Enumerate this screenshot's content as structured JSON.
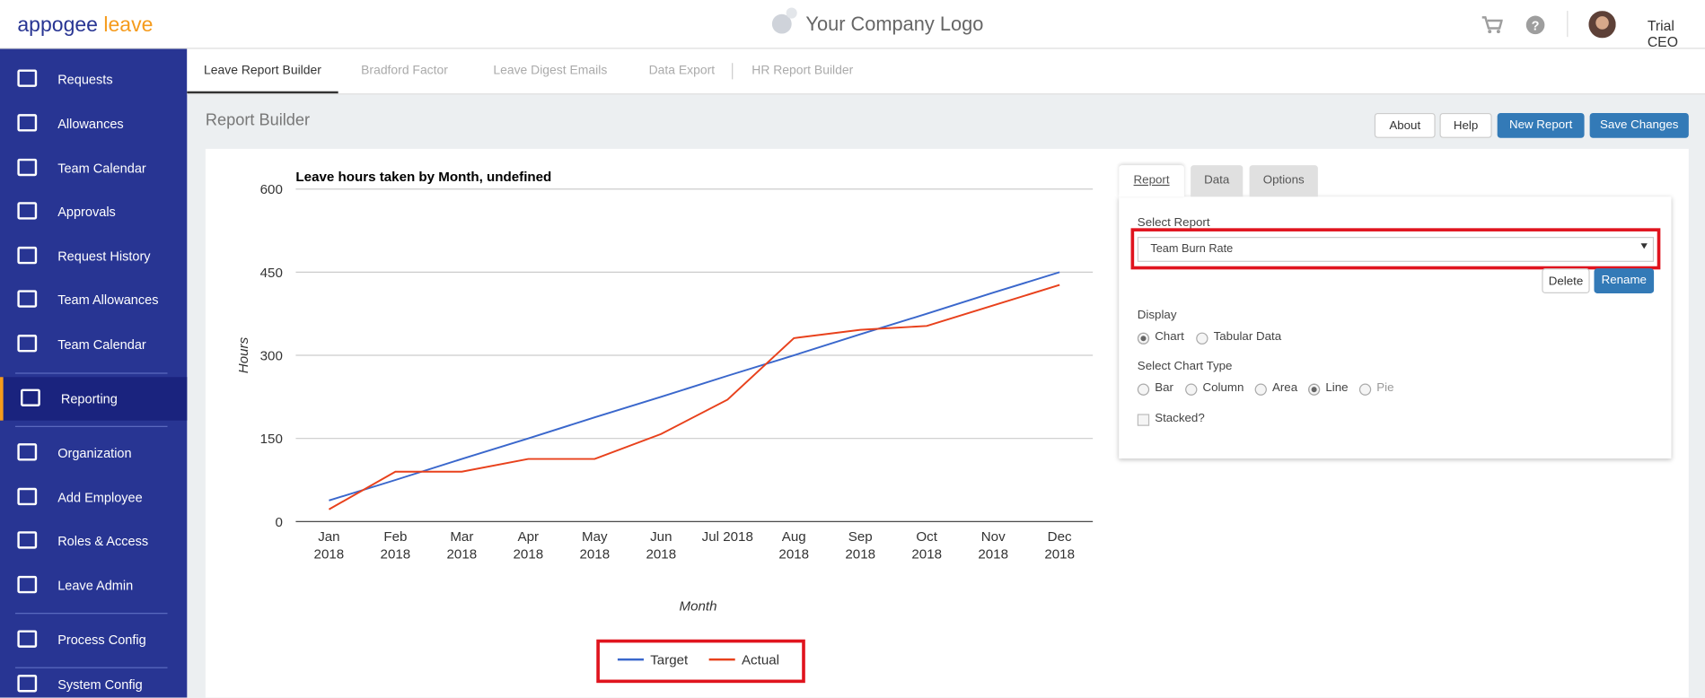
{
  "header": {
    "brand": "appogee",
    "brand_product": "leave",
    "logo_text": "Your Company Logo",
    "user": "Trial CEO"
  },
  "nav": [
    "Requests",
    "Allowances",
    "Team Calendar",
    "Approvals",
    "Request History",
    "Team Allowances",
    "Team Calendar",
    "Reporting",
    "Organization",
    "Add Employee",
    "Roles & Access",
    "Leave Admin",
    "Process Config",
    "System Config"
  ],
  "tabs": [
    "Leave Report Builder",
    "Bradford Factor",
    "Leave Digest Emails",
    "Data Export",
    "HR Report Builder"
  ],
  "page_title": "Report Builder",
  "buttons": [
    "About",
    "Help",
    "New Report",
    "Save Changes"
  ],
  "chart_data": {
    "type": "line",
    "title": "Leave hours taken by Month, undefined",
    "y_label": "Hours",
    "x_label": "Month",
    "categories": [
      "Jan\n2018",
      "Feb\n2018",
      "Mar\n2018",
      "Apr\n2018",
      "May\n2018",
      "Jun\n2018",
      "Jul 2018",
      "Aug\n2018",
      "Sep\n2018",
      "Oct\n2018",
      "Nov\n2018",
      "Dec\n2018"
    ],
    "series": [
      {
        "name": "Target",
        "color": "#3a67cc",
        "values": [
          38,
          75,
          113,
          150,
          188,
          225,
          263,
          300,
          338,
          375,
          413,
          450
        ]
      },
      {
        "name": "Actual",
        "color": "#e8411c",
        "values": [
          22,
          90,
          90,
          113,
          113,
          158,
          220,
          331,
          346,
          353,
          390,
          427
        ]
      }
    ],
    "ylim": [
      0,
      600
    ],
    "yticks": [
      0,
      150,
      300,
      450,
      600
    ],
    "grid": true
  },
  "panel": {
    "tabs": [
      "Report",
      "Data",
      "Options"
    ],
    "select_label": "Select Report",
    "selected": "Team Burn Rate",
    "delete": "Delete",
    "rename": "Rename",
    "display_label": "Display",
    "display_options": [
      "Chart",
      "Tabular Data"
    ],
    "chart_type_label": "Select Chart Type",
    "chart_types": [
      "Bar",
      "Column",
      "Area",
      "Line",
      "Pie"
    ],
    "stacked": "Stacked?"
  }
}
